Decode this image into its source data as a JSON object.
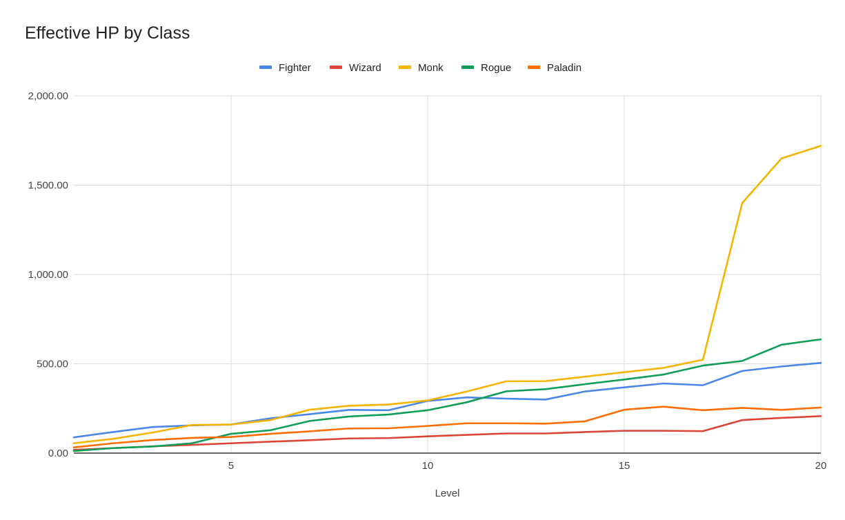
{
  "chart_data": {
    "type": "line",
    "title": "Effective HP by Class",
    "xlabel": "Level",
    "ylabel": "",
    "xlim": [
      1,
      20
    ],
    "ylim": [
      0,
      2000
    ],
    "x_ticks": [
      5,
      10,
      15,
      20
    ],
    "y_ticks": [
      0,
      500,
      1000,
      1500,
      2000
    ],
    "y_tick_labels": [
      "0.00",
      "500.00",
      "1,000.00",
      "1,500.00",
      "2,000.00"
    ],
    "grid": true,
    "legend_position": "top",
    "x": [
      1,
      2,
      3,
      4,
      5,
      6,
      7,
      8,
      9,
      10,
      11,
      12,
      13,
      14,
      15,
      16,
      17,
      18,
      19,
      20
    ],
    "series": [
      {
        "name": "Fighter",
        "color": "#4a86e8",
        "values": [
          88,
          118,
          146,
          155,
          160,
          195,
          218,
          242,
          240,
          292,
          312,
          305,
          300,
          345,
          368,
          390,
          380,
          460,
          485,
          505
        ]
      },
      {
        "name": "Wizard",
        "color": "#db4437",
        "values": [
          18,
          28,
          38,
          46,
          55,
          64,
          72,
          82,
          84,
          94,
          102,
          110,
          110,
          118,
          125,
          125,
          123,
          185,
          197,
          207
        ]
      },
      {
        "name": "Monk",
        "color": "#f4b400",
        "values": [
          55,
          80,
          115,
          157,
          160,
          185,
          243,
          265,
          272,
          295,
          345,
          402,
          403,
          428,
          453,
          477,
          523,
          1400,
          1650,
          1720
        ]
      },
      {
        "name": "Rogue",
        "color": "#0f9d58",
        "values": [
          12,
          28,
          37,
          55,
          108,
          128,
          180,
          205,
          216,
          240,
          285,
          346,
          358,
          386,
          412,
          440,
          490,
          516,
          607,
          637
        ]
      },
      {
        "name": "Paladin",
        "color": "#ff6d01",
        "values": [
          32,
          55,
          73,
          85,
          90,
          108,
          122,
          138,
          139,
          152,
          167,
          167,
          165,
          178,
          243,
          260,
          240,
          253,
          242,
          255
        ]
      }
    ]
  }
}
